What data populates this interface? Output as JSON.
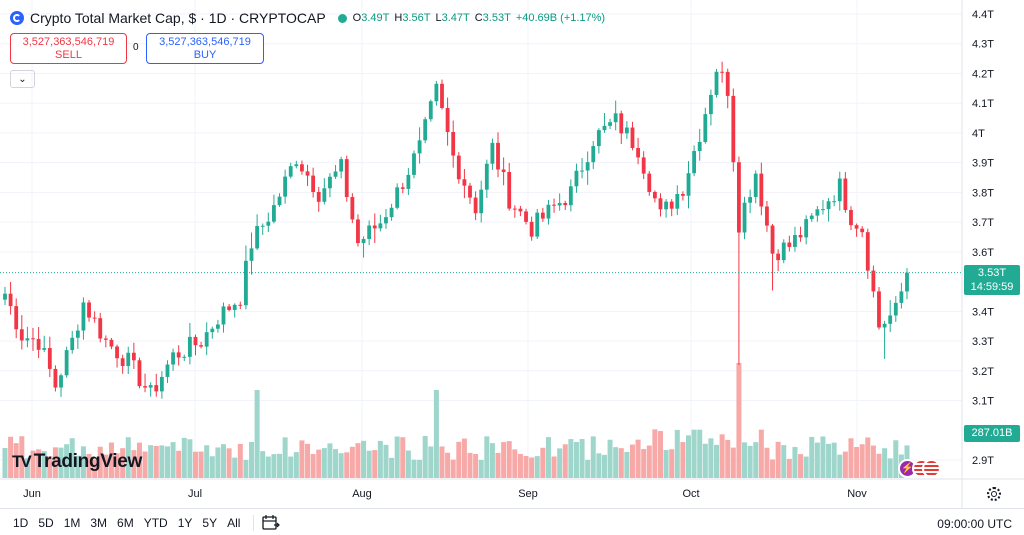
{
  "header": {
    "title": "Crypto Total Market Cap, $ · 1D · CRYPTOCAP",
    "ohlc": [
      {
        "label": "O",
        "value": "3.49T"
      },
      {
        "label": "H",
        "value": "3.56T"
      },
      {
        "label": "L",
        "value": "3.47T"
      },
      {
        "label": "C",
        "value": "3.53T"
      },
      {
        "label": "",
        "value": "+40.69B (+1.17%)"
      }
    ]
  },
  "trade": {
    "sell_value": "3,527,363,546,719",
    "sell_label": "SELL",
    "buy_value": "3,527,363,546,719",
    "buy_label": "BUY",
    "spread": "0"
  },
  "price_scale": {
    "labels": [
      "4.4T",
      "4.3T",
      "4.2T",
      "4.1T",
      "4T",
      "3.9T",
      "3.8T",
      "3.7T",
      "3.6T",
      "3.4T",
      "3.3T",
      "3.2T",
      "3.1T",
      "2.9T"
    ],
    "current_price": "3.53T",
    "countdown": "14:59:59",
    "volume_label": "287.01B"
  },
  "time_axis": [
    "Jun",
    "Jul",
    "Aug",
    "Sep",
    "Oct",
    "Nov"
  ],
  "brand": "TradingView",
  "bottom_bar": {
    "ranges": [
      "1D",
      "5D",
      "1M",
      "3M",
      "6M",
      "YTD",
      "1Y",
      "5Y",
      "All"
    ],
    "time": "09:00:00 UTC"
  },
  "colors": {
    "up": "#22ab94",
    "down": "#f23645",
    "up_vol": "#9fd6cc",
    "down_vol": "#f7a9a8"
  },
  "chart_data": {
    "type": "candlestick",
    "title": "Crypto Total Market Cap, $ · 1D · CRYPTOCAP",
    "unit": "trillion USD",
    "ylim": [
      2.87,
      4.44
    ],
    "yticks": [
      4.4,
      4.3,
      4.2,
      4.1,
      4.0,
      3.9,
      3.8,
      3.7,
      3.6,
      3.4,
      3.3,
      3.2,
      3.1,
      2.9
    ],
    "x_labels": [
      "Jun",
      "Jul",
      "Aug",
      "Sep",
      "Oct",
      "Nov"
    ],
    "last_close": 3.53,
    "waypoints": [
      {
        "day": 0,
        "close": 3.46
      },
      {
        "day": 3,
        "close": 3.32
      },
      {
        "day": 6,
        "close": 3.3
      },
      {
        "day": 9,
        "close": 3.15
      },
      {
        "day": 12,
        "close": 3.3
      },
      {
        "day": 14,
        "close": 3.43
      },
      {
        "day": 18,
        "close": 3.3
      },
      {
        "day": 22,
        "close": 3.23
      },
      {
        "day": 26,
        "close": 3.12
      },
      {
        "day": 30,
        "close": 3.25
      },
      {
        "day": 35,
        "close": 3.3
      },
      {
        "day": 38,
        "close": 3.38
      },
      {
        "day": 42,
        "close": 3.45
      },
      {
        "day": 44,
        "close": 3.63
      },
      {
        "day": 48,
        "close": 3.75
      },
      {
        "day": 52,
        "close": 3.92
      },
      {
        "day": 56,
        "close": 3.8
      },
      {
        "day": 60,
        "close": 3.88
      },
      {
        "day": 63,
        "close": 3.63
      },
      {
        "day": 67,
        "close": 3.7
      },
      {
        "day": 70,
        "close": 3.8
      },
      {
        "day": 74,
        "close": 3.95
      },
      {
        "day": 77,
        "close": 4.14
      },
      {
        "day": 80,
        "close": 3.92
      },
      {
        "day": 84,
        "close": 3.75
      },
      {
        "day": 87,
        "close": 3.95
      },
      {
        "day": 90,
        "close": 3.78
      },
      {
        "day": 94,
        "close": 3.68
      },
      {
        "day": 98,
        "close": 3.75
      },
      {
        "day": 101,
        "close": 3.8
      },
      {
        "day": 105,
        "close": 3.98
      },
      {
        "day": 109,
        "close": 4.04
      },
      {
        "day": 113,
        "close": 3.95
      },
      {
        "day": 117,
        "close": 3.72
      },
      {
        "day": 121,
        "close": 3.82
      },
      {
        "day": 124,
        "close": 4.0
      },
      {
        "day": 127,
        "close": 4.22
      },
      {
        "day": 129,
        "close": 4.15
      },
      {
        "day": 131,
        "close": 3.7
      },
      {
        "day": 134,
        "close": 3.87
      },
      {
        "day": 137,
        "close": 3.6
      },
      {
        "day": 140,
        "close": 3.62
      },
      {
        "day": 143,
        "close": 3.68
      },
      {
        "day": 146,
        "close": 3.76
      },
      {
        "day": 149,
        "close": 3.82
      },
      {
        "day": 151,
        "close": 3.72
      },
      {
        "day": 153,
        "close": 3.68
      },
      {
        "day": 156,
        "close": 3.35
      },
      {
        "day": 159,
        "close": 3.4
      },
      {
        "day": 161,
        "close": 3.53
      }
    ]
  }
}
